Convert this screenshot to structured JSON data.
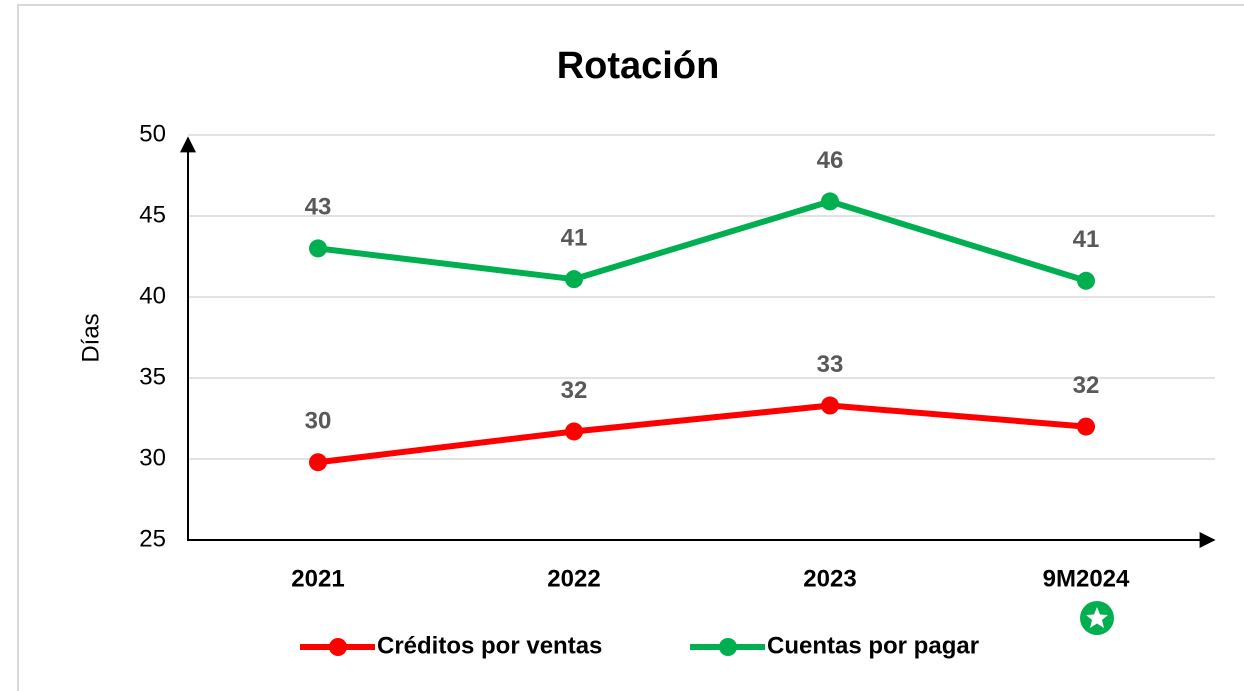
{
  "chart_data": {
    "type": "line",
    "title": "Rotación",
    "y_label": "Días",
    "categories": [
      "2021",
      "2022",
      "2023",
      "9M2024"
    ],
    "series": [
      {
        "name": "Créditos por ventas",
        "color": "#ff0000",
        "values": [
          29.8,
          31.7,
          33.3,
          32.0
        ],
        "value_labels": [
          "30",
          "32",
          "33",
          "32"
        ]
      },
      {
        "name": "Cuentas por pagar",
        "color": "#00b050",
        "values": [
          43.0,
          41.1,
          45.9,
          41.0
        ],
        "value_labels": [
          "43",
          "41",
          "46",
          "41"
        ]
      }
    ],
    "ylim": [
      25,
      50
    ],
    "yticks": [
      25,
      30,
      35,
      40,
      45,
      50
    ],
    "grid": true,
    "legend": "bottom"
  }
}
